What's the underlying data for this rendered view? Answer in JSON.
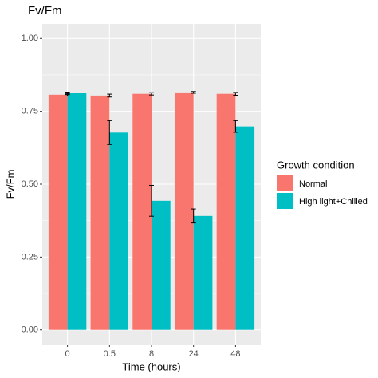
{
  "chart_data": {
    "type": "bar",
    "title": "Fv/Fm",
    "x_label": "Time (hours)",
    "y_label": "Fv/Fm",
    "categories": [
      "0",
      "0.5",
      "8",
      "24",
      "48"
    ],
    "legend_title": "Growth condition",
    "series": [
      {
        "name": "Normal",
        "color": "#F8766D",
        "values": [
          0.807,
          0.804,
          0.81,
          0.815,
          0.81
        ],
        "errors": [
          0.004,
          0.005,
          0.004,
          0.003,
          0.005
        ]
      },
      {
        "name": "High light+Chilled",
        "color": "#00BFC4",
        "values": [
          0.812,
          0.677,
          0.443,
          0.391,
          0.698
        ],
        "errors": [
          0.004,
          0.041,
          0.053,
          0.024,
          0.02
        ]
      }
    ],
    "ylim": [
      -0.05,
      1.05
    ],
    "yticks": [
      {
        "value": 0,
        "label": "0.00"
      },
      {
        "value": 0.25,
        "label": "0.25"
      },
      {
        "value": 0.5,
        "label": "0.50"
      },
      {
        "value": 0.75,
        "label": "0.75"
      },
      {
        "value": 1,
        "label": "1.00"
      }
    ],
    "grid": true
  }
}
